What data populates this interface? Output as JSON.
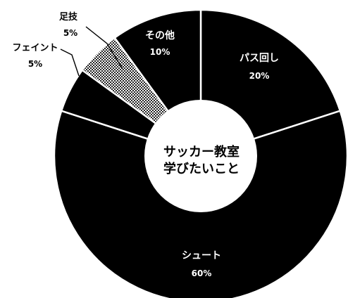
{
  "chart_data": {
    "type": "pie",
    "donut": true,
    "center_title": [
      "サッカー教室",
      "学びたいこと"
    ],
    "slices": [
      {
        "label": "パス回し",
        "value": 20,
        "pct_label": "20%",
        "fill": "#000000"
      },
      {
        "label": "シュート",
        "value": 60,
        "pct_label": "60%",
        "fill": "#000000"
      },
      {
        "label": "フェイント",
        "value": 5,
        "pct_label": "5%",
        "fill": "#000000"
      },
      {
        "label": "足技",
        "value": 5,
        "pct_label": "5%",
        "fill": "#777777"
      },
      {
        "label": "その他",
        "value": 10,
        "pct_label": "10%",
        "fill": "#000000"
      }
    ],
    "start_angle_deg": 0,
    "direction": "clockwise"
  }
}
